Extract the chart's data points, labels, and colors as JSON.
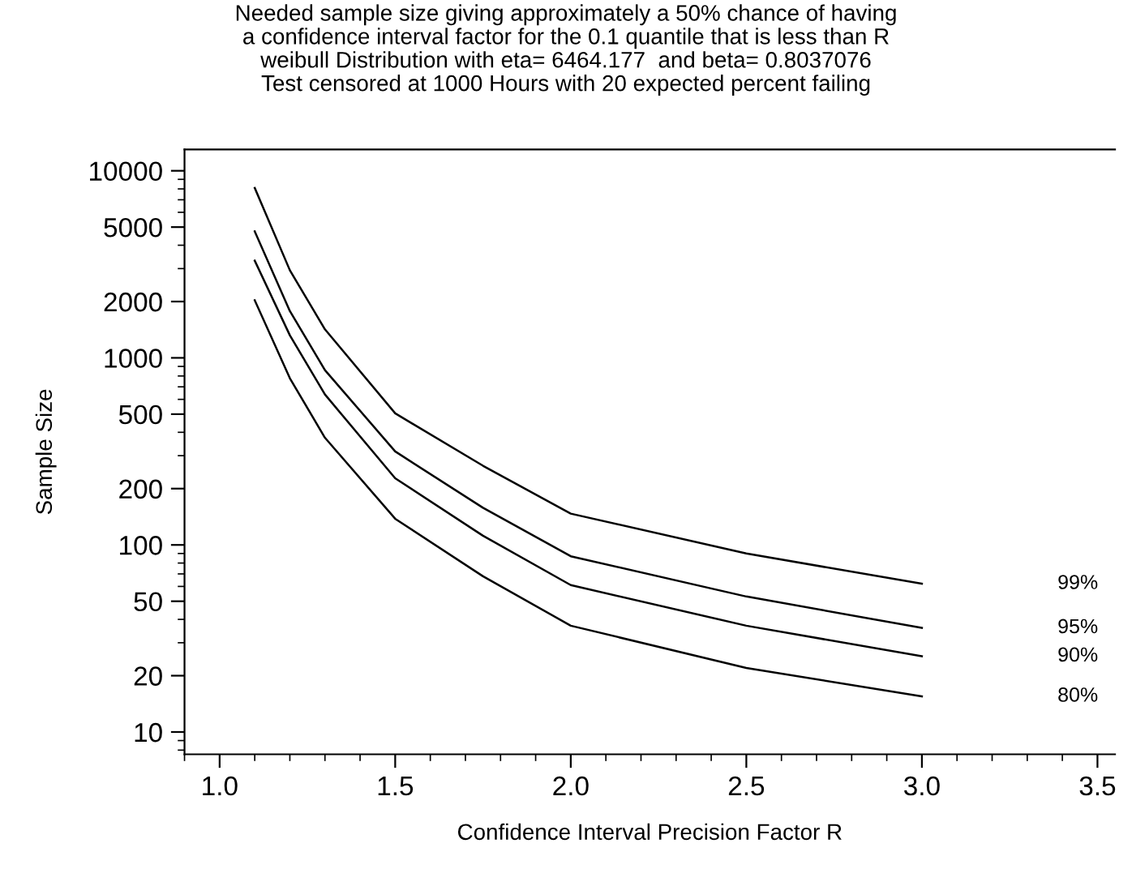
{
  "chart_data": {
    "type": "line",
    "title": "Needed sample size giving approximately a 50% chance of having\na confidence interval factor for the 0.1 quantile that is less than R\nweibull Distribution with eta= 6464.177  and beta= 0.8037076\nTest censored at 1000 Hours with 20 expected percent failing",
    "xlabel": "Confidence Interval Precision Factor R",
    "ylabel": "Sample Size",
    "log": "y",
    "x": [
      1.1,
      1.2,
      1.3,
      1.5,
      1.75,
      2.0,
      2.5,
      3.0
    ],
    "series": [
      {
        "name": "99%",
        "color": "#000000",
        "values": [
          8100,
          2940,
          1420,
          505,
          265,
          147,
          90,
          62
        ]
      },
      {
        "name": "95%",
        "color": "#000000",
        "values": [
          4740,
          1780,
          860,
          316,
          158,
          87,
          53,
          36
        ]
      },
      {
        "name": "90%",
        "color": "#000000",
        "values": [
          3310,
          1320,
          637,
          227,
          112,
          61,
          37,
          25.4
        ]
      },
      {
        "name": "80%",
        "color": "#000000",
        "values": [
          2030,
          778,
          374,
          138,
          68,
          37,
          22,
          15.5
        ]
      }
    ],
    "xlim": [
      0.9,
      3.55
    ],
    "xticks": [
      {
        "value": 1.0,
        "label": "1.0"
      },
      {
        "value": 1.5,
        "label": "1.5"
      },
      {
        "value": 2.0,
        "label": "2.0"
      },
      {
        "value": 2.5,
        "label": "2.5"
      },
      {
        "value": 3.0,
        "label": "3.0"
      },
      {
        "value": 3.5,
        "label": "3.5"
      }
    ],
    "ylim": [
      7.6,
      13000
    ],
    "yticks": [
      10,
      20,
      50,
      100,
      200,
      500,
      1000,
      2000,
      5000,
      10000
    ],
    "grid": false,
    "legend": false,
    "marker": "none",
    "line_style": "solid"
  }
}
